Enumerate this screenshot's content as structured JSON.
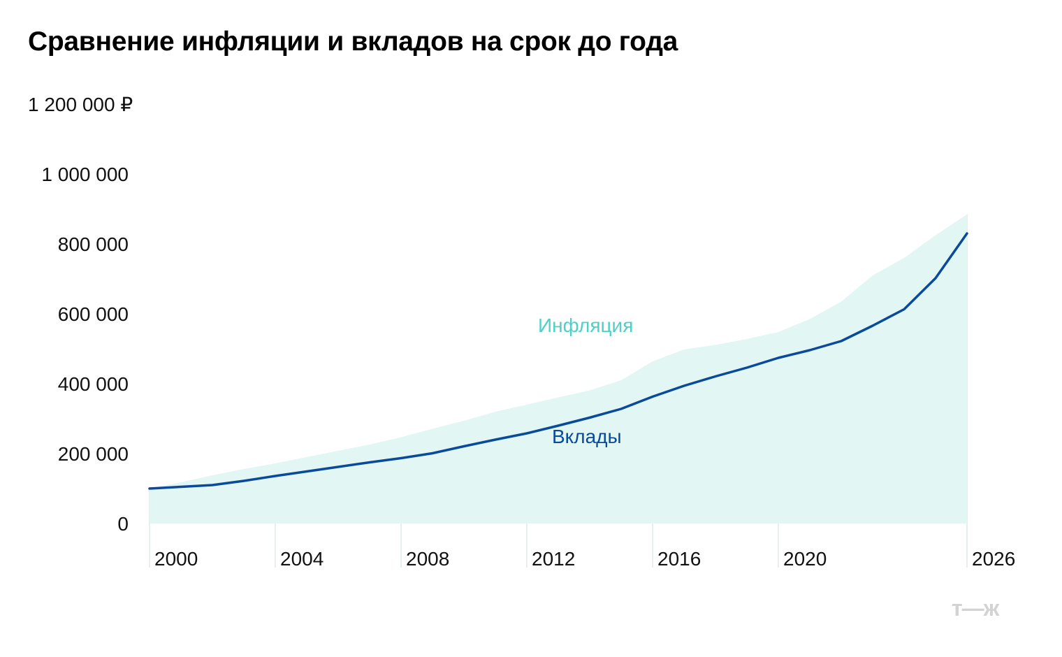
{
  "chart_data": {
    "type": "area",
    "title": "Сравнение инфляции и вкладов на срок до года",
    "xlabel": "",
    "ylabel": "",
    "y_ticks": [
      "1 200 000 ₽",
      "1 000 000",
      "800 000",
      "600 000",
      "400 000",
      "200 000",
      "0"
    ],
    "y_tick_values": [
      1200000,
      1000000,
      800000,
      600000,
      400000,
      200000,
      0
    ],
    "x_ticks": [
      "2000",
      "2004",
      "2008",
      "2012",
      "2016",
      "2020",
      "2026"
    ],
    "x_tick_values": [
      2000,
      2004,
      2008,
      2012,
      2016,
      2020,
      2026
    ],
    "xlim": [
      2000,
      2026
    ],
    "ylim": [
      0,
      1200000
    ],
    "grid": "vertical",
    "legend": "inline labels",
    "series": [
      {
        "name": "Инфляция",
        "type": "area",
        "color": "#e2f6f4",
        "label_color": "#4fd0c6",
        "x": [
          2000,
          2001,
          2002,
          2003,
          2004,
          2005,
          2006,
          2007,
          2008,
          2009,
          2010,
          2011,
          2012,
          2013,
          2014,
          2015,
          2016,
          2017,
          2018,
          2019,
          2020,
          2021,
          2022,
          2023,
          2024,
          2025,
          2026
        ],
        "values": [
          100000,
          118000,
          138000,
          156000,
          172000,
          190000,
          208000,
          226000,
          247000,
          271000,
          294000,
          320000,
          340000,
          361000,
          381000,
          410000,
          464000,
          498000,
          511000,
          528000,
          548000,
          585000,
          635000,
          710000,
          760000,
          825000,
          885000
        ]
      },
      {
        "name": "Вклады",
        "type": "line",
        "color": "#0a4a9a",
        "x": [
          2000,
          2001,
          2002,
          2003,
          2004,
          2005,
          2006,
          2007,
          2008,
          2009,
          2010,
          2011,
          2012,
          2013,
          2014,
          2015,
          2016,
          2017,
          2018,
          2019,
          2020,
          2021,
          2022,
          2023,
          2024,
          2025,
          2026
        ],
        "values": [
          100000,
          105000,
          110000,
          122000,
          136000,
          149000,
          162000,
          175000,
          187000,
          201000,
          221000,
          240000,
          258000,
          280000,
          303000,
          328000,
          363000,
          394000,
          421000,
          446000,
          474000,
          496000,
          522000,
          566000,
          613000,
          702000,
          830000
        ]
      }
    ]
  },
  "branding": {
    "logo": "т—ж"
  }
}
